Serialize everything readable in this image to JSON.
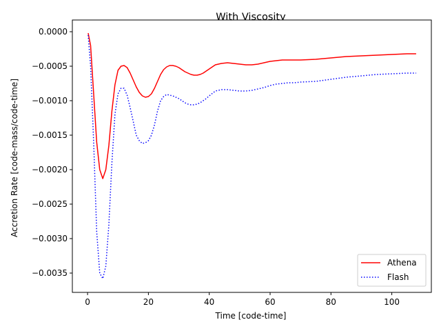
{
  "chart_data": {
    "type": "line",
    "title": "With Viscosity",
    "xlabel": "Time [code-time]",
    "ylabel": "Accretion Rate [code-mass/code-time]",
    "xlim": [
      -5,
      113
    ],
    "ylim": [
      -0.00378,
      0.00017
    ],
    "xticks": [
      0,
      20,
      40,
      60,
      80,
      100
    ],
    "xtick_labels": [
      "0",
      "20",
      "40",
      "60",
      "80",
      "100"
    ],
    "yticks": [
      0.0,
      -0.0005,
      -0.001,
      -0.0015,
      -0.002,
      -0.0025,
      -0.003,
      -0.0035
    ],
    "ytick_labels": [
      "0.0000",
      "−0.0005",
      "−0.0010",
      "−0.0015",
      "−0.0020",
      "−0.0025",
      "−0.0030",
      "−0.0035"
    ],
    "grid": false,
    "legend_position": "lower-right",
    "series": [
      {
        "name": "Athena",
        "color": "#ff0000",
        "style": "solid",
        "x": [
          0.2,
          1,
          2,
          3,
          4,
          5,
          6,
          7,
          8,
          9,
          10,
          11,
          12,
          13,
          14,
          15,
          16,
          17,
          18,
          19,
          20,
          21,
          22,
          23,
          24,
          25,
          26,
          27,
          28,
          29,
          30,
          31,
          32,
          33,
          34,
          35,
          36,
          37,
          38,
          39,
          40,
          42,
          44,
          46,
          48,
          50,
          52,
          54,
          56,
          58,
          60,
          62,
          64,
          66,
          68,
          70,
          75,
          80,
          85,
          90,
          95,
          100,
          105,
          108
        ],
        "y": [
          -2e-05,
          -0.0002,
          -0.0009,
          -0.0016,
          -0.002,
          -0.00213,
          -0.002,
          -0.00165,
          -0.00115,
          -0.00077,
          -0.00056,
          -0.0005,
          -0.00049,
          -0.00052,
          -0.0006,
          -0.0007,
          -0.0008,
          -0.00088,
          -0.00093,
          -0.00095,
          -0.00094,
          -0.0009,
          -0.00082,
          -0.00072,
          -0.00062,
          -0.00055,
          -0.00051,
          -0.00049,
          -0.00049,
          -0.0005,
          -0.00052,
          -0.00055,
          -0.00058,
          -0.0006,
          -0.00062,
          -0.00063,
          -0.00063,
          -0.00062,
          -0.0006,
          -0.00057,
          -0.00054,
          -0.00048,
          -0.00046,
          -0.00045,
          -0.00046,
          -0.00047,
          -0.00048,
          -0.00048,
          -0.00047,
          -0.00045,
          -0.00043,
          -0.00042,
          -0.00041,
          -0.00041,
          -0.00041,
          -0.00041,
          -0.0004,
          -0.00038,
          -0.00036,
          -0.00035,
          -0.00034,
          -0.00033,
          -0.00032,
          -0.00032
        ]
      },
      {
        "name": "Flash",
        "color": "#0000ff",
        "style": "dotted",
        "x": [
          0.2,
          1,
          2,
          3,
          4,
          5,
          6,
          7,
          8,
          9,
          10,
          11,
          12,
          13,
          14,
          15,
          16,
          17,
          18,
          19,
          20,
          21,
          22,
          23,
          24,
          25,
          26,
          27,
          28,
          29,
          30,
          31,
          32,
          33,
          34,
          35,
          36,
          37,
          38,
          39,
          40,
          42,
          44,
          46,
          48,
          50,
          52,
          54,
          56,
          58,
          60,
          62,
          64,
          66,
          68,
          70,
          75,
          80,
          85,
          90,
          95,
          100,
          105,
          108
        ],
        "y": [
          -5e-05,
          -0.0005,
          -0.0016,
          -0.0029,
          -0.0035,
          -0.00358,
          -0.0034,
          -0.0028,
          -0.0019,
          -0.0012,
          -0.0009,
          -0.00082,
          -0.00082,
          -0.00092,
          -0.0011,
          -0.0013,
          -0.0015,
          -0.00158,
          -0.00162,
          -0.00161,
          -0.00158,
          -0.0015,
          -0.00135,
          -0.00115,
          -0.001,
          -0.00094,
          -0.00091,
          -0.00092,
          -0.00093,
          -0.00095,
          -0.00097,
          -0.001,
          -0.00103,
          -0.00105,
          -0.00106,
          -0.00106,
          -0.00105,
          -0.00103,
          -0.001,
          -0.00097,
          -0.00093,
          -0.00086,
          -0.00084,
          -0.00084,
          -0.00085,
          -0.00086,
          -0.00086,
          -0.00085,
          -0.00083,
          -0.00081,
          -0.00078,
          -0.00076,
          -0.00075,
          -0.00074,
          -0.00074,
          -0.00073,
          -0.00072,
          -0.00069,
          -0.00066,
          -0.00064,
          -0.00062,
          -0.00061,
          -0.0006,
          -0.0006
        ]
      }
    ]
  }
}
